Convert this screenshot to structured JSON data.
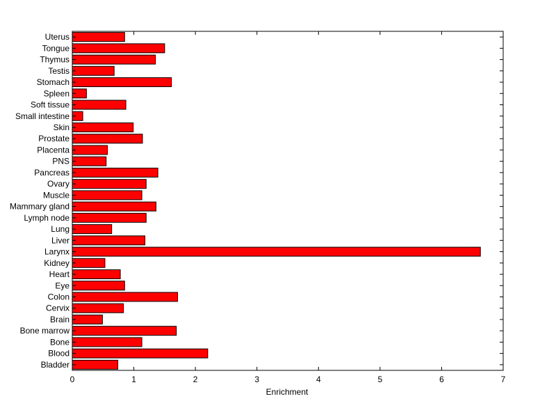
{
  "chart_data": {
    "type": "bar",
    "orientation": "horizontal",
    "title": "",
    "xlabel": "Enrichment",
    "ylabel": "",
    "xlim": [
      0,
      7
    ],
    "xticks": [
      "0",
      "1",
      "2",
      "3",
      "4",
      "5",
      "6",
      "7"
    ],
    "grid": false,
    "legend": "none",
    "bar_color": "#ff0000",
    "bar_edge_color": "#000000",
    "categories": [
      "Bladder",
      "Blood",
      "Bone",
      "Bone marrow",
      "Brain",
      "Cervix",
      "Colon",
      "Eye",
      "Heart",
      "Kidney",
      "Larynx",
      "Liver",
      "Lung",
      "Lymph node",
      "Mammary gland",
      "Muscle",
      "Ovary",
      "Pancreas",
      "PNS",
      "Placenta",
      "Prostate",
      "Skin",
      "Small intestine",
      "Soft tissue",
      "Spleen",
      "Stomach",
      "Testis",
      "Thymus",
      "Tongue",
      "Uterus"
    ],
    "values": [
      0.74,
      2.2,
      1.13,
      1.69,
      0.49,
      0.83,
      1.71,
      0.85,
      0.78,
      0.53,
      6.63,
      1.18,
      0.64,
      1.2,
      1.36,
      1.13,
      1.2,
      1.39,
      0.55,
      0.57,
      1.14,
      0.99,
      0.17,
      0.87,
      0.23,
      1.61,
      0.68,
      1.35,
      1.5,
      0.85
    ]
  }
}
